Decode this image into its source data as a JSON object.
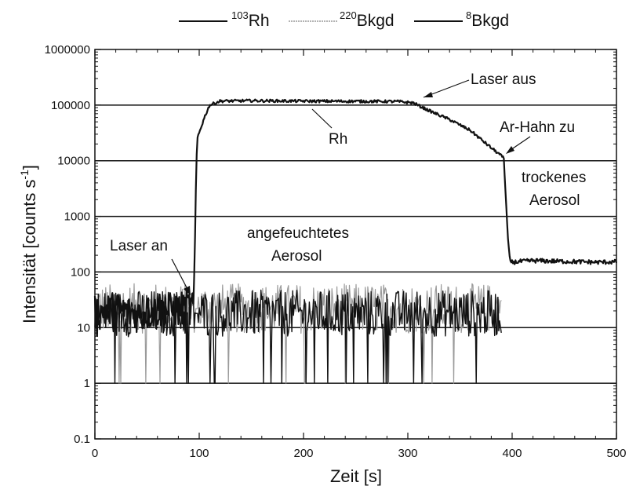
{
  "chart_data": {
    "type": "line",
    "title": "",
    "xlabel": "Zeit [s]",
    "ylabel": "Intensität [counts s",
    "ylabel_sup": "-1",
    "ylabel_end": "]",
    "xlim": [
      0,
      500
    ],
    "ylim": [
      0.1,
      1000000
    ],
    "y_scale": "log",
    "x_ticks": [
      0,
      100,
      200,
      300,
      400,
      500
    ],
    "y_ticks": [
      0.1,
      1,
      10,
      100,
      1000,
      10000,
      100000,
      1000000
    ],
    "horizontal_gridlines": [
      1,
      10,
      100,
      1000,
      10000,
      100000
    ],
    "legend": {
      "placement": "top-center",
      "entries": [
        {
          "sup": "103",
          "label": "Rh",
          "color": "#111111"
        },
        {
          "sup": "220",
          "label": "Bkgd",
          "color": "#9a9a9a"
        },
        {
          "sup": "8",
          "label": "Bkgd",
          "color": "#111111"
        }
      ]
    },
    "series": [
      {
        "name": "103Rh",
        "color": "#111111",
        "points": [
          [
            0,
            18
          ],
          [
            20,
            22
          ],
          [
            40,
            17
          ],
          [
            60,
            20
          ],
          [
            80,
            21
          ],
          [
            95,
            25
          ],
          [
            97,
            5000
          ],
          [
            98,
            25000
          ],
          [
            100,
            32000
          ],
          [
            105,
            60000
          ],
          [
            110,
            100000
          ],
          [
            120,
            118000
          ],
          [
            150,
            120000
          ],
          [
            200,
            118000
          ],
          [
            250,
            117000
          ],
          [
            290,
            116000
          ],
          [
            305,
            110000
          ],
          [
            320,
            80000
          ],
          [
            340,
            55000
          ],
          [
            360,
            35000
          ],
          [
            380,
            17000
          ],
          [
            388,
            13000
          ],
          [
            392,
            11000
          ],
          [
            394,
            2000
          ],
          [
            396,
            400
          ],
          [
            398,
            160
          ],
          [
            400,
            150
          ],
          [
            420,
            160
          ],
          [
            450,
            155
          ],
          [
            480,
            150
          ],
          [
            500,
            152
          ]
        ]
      },
      {
        "name": "220Bkgd",
        "color": "#9a9a9a",
        "points": [
          [
            0,
            22
          ],
          [
            100,
            22
          ],
          [
            200,
            22
          ],
          [
            300,
            22
          ],
          [
            390,
            22
          ]
        ]
      },
      {
        "name": "8Bkgd",
        "color": "#111111",
        "points": [
          [
            0,
            18
          ],
          [
            100,
            18
          ],
          [
            200,
            18
          ],
          [
            300,
            18
          ],
          [
            390,
            18
          ]
        ]
      }
    ],
    "annotations": [
      {
        "text": "Laser aus",
        "at": [
          305,
          110000
        ]
      },
      {
        "text": "Rh",
        "at": [
          195,
          120000
        ]
      },
      {
        "text": "Ar-Hahn zu",
        "at": [
          390,
          12000
        ]
      },
      {
        "text": "trockenes",
        "at": [
          445,
          5000
        ]
      },
      {
        "text": "Aerosol",
        "at": [
          445,
          1500
        ]
      },
      {
        "text": "angefeuchtetes",
        "at": [
          250,
          400
        ]
      },
      {
        "text": "Aerosol",
        "at": [
          250,
          150
        ]
      },
      {
        "text": "Laser an",
        "at": [
          95,
          90
        ]
      }
    ]
  }
}
